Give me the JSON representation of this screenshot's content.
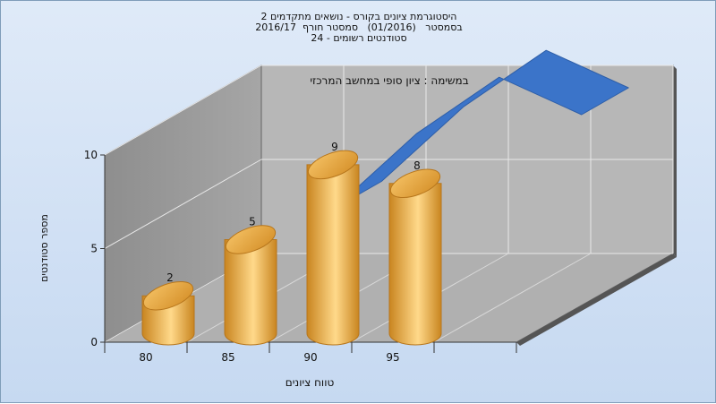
{
  "chart_data": {
    "type": "bar",
    "title": [
      "היסטוגרמת ציונים בקורס - נושאים מתקדמים 2",
      "בסמסטר   (01/2016)   סמסטר חורף  2016/17",
      "סטודנטים רשומים - 24"
    ],
    "annotation": "במשימה : ציון סופי במחשב המרכזי",
    "xlabel": "טווח ציונים",
    "ylabel": "מספר סטודנטים",
    "x_ticks": [
      "80",
      "85",
      "90",
      "95"
    ],
    "y_ticks": [
      "0",
      "5",
      "10"
    ],
    "ylim": [
      0,
      10
    ],
    "values": [
      2,
      5,
      9,
      8
    ],
    "bar_positions": [
      80,
      85,
      90,
      95
    ],
    "curve": {
      "x": [
        85,
        90,
        95,
        100
      ],
      "y": [
        5,
        9,
        12,
        10
      ]
    },
    "colors": {
      "bar": "#e8a541",
      "bar_light": "#ffd98a",
      "curve": "#3b74c9",
      "wall": "#9a9a9a",
      "floor": "#b9b9b9"
    }
  }
}
